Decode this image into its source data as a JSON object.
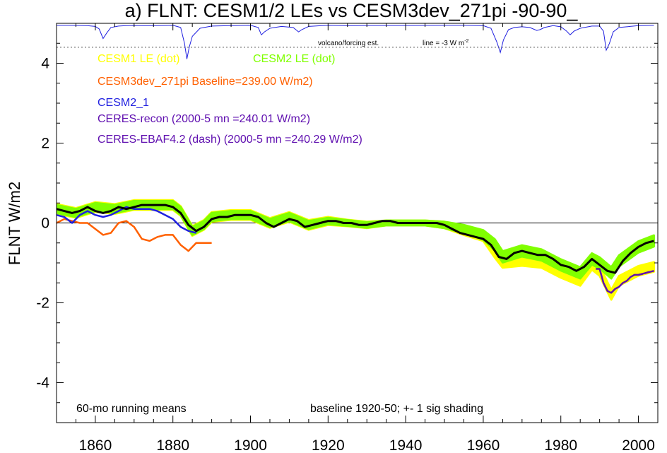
{
  "chart_data": {
    "type": "line",
    "title": "a) FLNT: CESM1/2 LEs vs CESM3dev_271pi -90-90_",
    "ylabel": "FLNT W/m2",
    "xlim": [
      1850,
      2005
    ],
    "ylim": [
      -5,
      5
    ],
    "x_ticks": [
      "1860",
      "1880",
      "1900",
      "1920",
      "1940",
      "1960",
      "1980",
      "2000"
    ],
    "y_ticks": [
      "4",
      "2",
      "0",
      "-2",
      "-4"
    ],
    "grid": false,
    "legend_entries": [
      {
        "text": "CESM1 LE (dot)",
        "color": "#ffff00"
      },
      {
        "text": "CESM2 LE (dot)",
        "color": "#80ff00"
      },
      {
        "text": "CESM3dev_271pi Baseline=239.00 W/m2)",
        "color": "#ff6000"
      },
      {
        "text": "CESM2_1",
        "color": "#2020e0"
      },
      {
        "text": "CERES-recon (2000-5 mn =240.01 W/m2)",
        "color": "#6010b0"
      },
      {
        "text": "CERES-EBAF4.2 (dash) (2000-5 mn =240.29 W/m2)",
        "color": "#6010b0"
      }
    ],
    "annotations": {
      "running_means": "60-mo running means",
      "baseline": "baseline 1920-50; +- 1 sig shading",
      "volcano": "volcano/forcing est.",
      "line_label": "line = -3 W m",
      "line_label_exp": "-2"
    },
    "series": [
      {
        "name": "CESM1 LE (dot)",
        "color": "#ffff00",
        "style": "band",
        "x": [
          1850,
          1855,
          1860,
          1865,
          1870,
          1875,
          1880,
          1882,
          1885,
          1888,
          1890,
          1895,
          1900,
          1905,
          1910,
          1915,
          1920,
          1925,
          1930,
          1935,
          1940,
          1945,
          1950,
          1955,
          1960,
          1963,
          1965,
          1970,
          1975,
          1980,
          1985,
          1988,
          1990,
          1993,
          1995,
          2000,
          2004
        ],
        "values": [
          0.35,
          0.25,
          0.4,
          0.35,
          0.45,
          0.45,
          0.45,
          0.3,
          -0.2,
          -0.05,
          0.15,
          0.2,
          0.2,
          0.0,
          0.15,
          -0.05,
          0.05,
          0.0,
          -0.05,
          0.0,
          0.0,
          0.0,
          -0.05,
          -0.2,
          -0.35,
          -0.75,
          -1.0,
          -0.95,
          -1.0,
          -1.25,
          -1.45,
          -1.05,
          -1.2,
          -1.8,
          -1.45,
          -1.2,
          -1.1
        ],
        "spread": [
          0.12,
          0.12,
          0.12,
          0.12,
          0.12,
          0.12,
          0.12,
          0.12,
          0.12,
          0.12,
          0.12,
          0.12,
          0.12,
          0.12,
          0.12,
          0.12,
          0.1,
          0.08,
          0.08,
          0.06,
          0.06,
          0.06,
          0.08,
          0.1,
          0.1,
          0.12,
          0.12,
          0.12,
          0.12,
          0.12,
          0.12,
          0.12,
          0.12,
          0.12,
          0.12,
          0.12,
          0.12
        ]
      },
      {
        "name": "CESM2 LE (dot)",
        "color": "#80ff00",
        "style": "band",
        "x": [
          1850,
          1855,
          1860,
          1865,
          1870,
          1875,
          1880,
          1882,
          1885,
          1888,
          1890,
          1895,
          1900,
          1905,
          1910,
          1915,
          1920,
          1925,
          1930,
          1935,
          1940,
          1945,
          1950,
          1955,
          1960,
          1963,
          1965,
          1970,
          1975,
          1980,
          1985,
          1988,
          1990,
          1993,
          1995,
          2000,
          2004
        ],
        "values": [
          0.35,
          0.25,
          0.4,
          0.35,
          0.45,
          0.45,
          0.45,
          0.3,
          -0.2,
          -0.05,
          0.15,
          0.2,
          0.2,
          0.0,
          0.15,
          -0.05,
          0.05,
          0.0,
          -0.05,
          0.0,
          0.0,
          0.0,
          -0.05,
          -0.15,
          -0.3,
          -0.55,
          -0.85,
          -0.7,
          -0.8,
          -1.05,
          -1.25,
          -0.9,
          -1.0,
          -1.25,
          -0.95,
          -0.6,
          -0.45
        ],
        "spread": [
          0.1,
          0.1,
          0.1,
          0.1,
          0.1,
          0.1,
          0.1,
          0.1,
          0.1,
          0.1,
          0.1,
          0.1,
          0.1,
          0.1,
          0.1,
          0.1,
          0.08,
          0.07,
          0.07,
          0.06,
          0.06,
          0.06,
          0.08,
          0.1,
          0.12,
          0.14,
          0.14,
          0.14,
          0.14,
          0.14,
          0.14,
          0.14,
          0.14,
          0.14,
          0.14,
          0.14,
          0.14
        ]
      },
      {
        "name": "CESM3dev_271pi",
        "color": "#ff6000",
        "style": "line",
        "x": [
          1850,
          1852,
          1854,
          1856,
          1858,
          1860,
          1862,
          1864,
          1866,
          1868,
          1870,
          1872,
          1874,
          1876,
          1878,
          1880,
          1882,
          1884,
          1886,
          1888,
          1890
        ],
        "values": [
          0.0,
          0.1,
          0.05,
          0.0,
          0.0,
          -0.15,
          -0.3,
          -0.25,
          0.0,
          0.05,
          -0.1,
          -0.4,
          -0.45,
          -0.35,
          -0.3,
          -0.3,
          -0.55,
          -0.7,
          -0.5,
          -0.5,
          -0.5
        ]
      },
      {
        "name": "CESM2_1",
        "color": "#2020e0",
        "style": "line",
        "x": [
          1850,
          1852,
          1854,
          1856,
          1858,
          1860,
          1862,
          1864,
          1866,
          1868,
          1870,
          1872,
          1874,
          1876,
          1878,
          1880,
          1882,
          1884,
          1886
        ],
        "values": [
          0.2,
          0.15,
          0.0,
          0.2,
          0.3,
          0.2,
          0.15,
          0.2,
          0.3,
          0.4,
          0.35,
          0.35,
          0.35,
          0.3,
          0.2,
          0.1,
          -0.1,
          -0.2,
          -0.25
        ]
      },
      {
        "name": "CERES-recon",
        "color": "#6010b0",
        "style": "line",
        "x": [
          1989,
          1990,
          1991,
          1992,
          1993,
          1994,
          1995,
          1996,
          1997,
          1998,
          1999,
          2000,
          2002,
          2004
        ],
        "values": [
          -1.15,
          -1.15,
          -1.5,
          -1.7,
          -1.75,
          -1.65,
          -1.6,
          -1.5,
          -1.45,
          -1.35,
          -1.3,
          -1.3,
          -1.25,
          -1.2
        ]
      },
      {
        "name": "CERES-EBAF4.2 (dash)",
        "color": "#6010b0",
        "style": "dash",
        "x": [
          2000,
          2001,
          2002,
          2003,
          2004
        ],
        "values": [
          -1.3,
          -1.28,
          -1.25,
          -1.22,
          -1.2
        ]
      },
      {
        "name": "",
        "color": "#000000",
        "style": "line",
        "x": [
          1850,
          1852,
          1854,
          1856,
          1858,
          1860,
          1862,
          1864,
          1866,
          1868,
          1870,
          1872,
          1874,
          1876,
          1878,
          1880,
          1882,
          1884,
          1886,
          1888,
          1890,
          1892,
          1894,
          1896,
          1898,
          1900,
          1902,
          1904,
          1906,
          1908,
          1910,
          1912,
          1914,
          1916,
          1918,
          1920,
          1922,
          1924,
          1926,
          1928,
          1930,
          1932,
          1934,
          1936,
          1938,
          1940,
          1942,
          1944,
          1946,
          1948,
          1950,
          1952,
          1954,
          1956,
          1958,
          1960,
          1962,
          1964,
          1966,
          1968,
          1970,
          1972,
          1974,
          1976,
          1978,
          1980,
          1982,
          1984,
          1986,
          1988,
          1990,
          1992,
          1994,
          1996,
          1998,
          2000,
          2002,
          2004
        ],
        "values": [
          0.35,
          0.3,
          0.25,
          0.3,
          0.4,
          0.3,
          0.25,
          0.3,
          0.4,
          0.35,
          0.4,
          0.45,
          0.45,
          0.45,
          0.45,
          0.4,
          0.25,
          -0.05,
          -0.2,
          -0.1,
          0.1,
          0.15,
          0.15,
          0.2,
          0.2,
          0.2,
          0.15,
          0.0,
          -0.1,
          0.0,
          0.1,
          0.05,
          -0.1,
          -0.05,
          0.0,
          0.05,
          0.05,
          0.0,
          0.0,
          -0.05,
          -0.05,
          0.0,
          0.05,
          0.05,
          0.0,
          0.0,
          0.0,
          0.0,
          0.0,
          0.0,
          -0.05,
          -0.15,
          -0.25,
          -0.3,
          -0.35,
          -0.4,
          -0.55,
          -0.85,
          -0.9,
          -0.75,
          -0.7,
          -0.75,
          -0.8,
          -0.8,
          -0.9,
          -1.05,
          -1.1,
          -1.2,
          -1.1,
          -0.9,
          -1.05,
          -1.2,
          -1.25,
          -0.95,
          -0.75,
          -0.6,
          -0.5,
          -0.45
        ]
      }
    ],
    "volcano_x": [
      1850,
      1853,
      1856,
      1858,
      1860,
      1861,
      1862,
      1863,
      1864,
      1866,
      1868,
      1870,
      1872,
      1875,
      1878,
      1880,
      1882,
      1883,
      1883.6,
      1884.2,
      1885,
      1887,
      1890,
      1895,
      1900,
      1902,
      1902.8,
      1903.6,
      1905,
      1908,
      1911,
      1912.4,
      1913.2,
      1915,
      1920,
      1925,
      1930,
      1940,
      1950,
      1955,
      1960,
      1962,
      1963.5,
      1964.4,
      1965.2,
      1966.5,
      1968,
      1970,
      1972,
      1973.8,
      1974.6,
      1975.8,
      1978,
      1980,
      1981.5,
      1982.4,
      1983.4,
      1985,
      1988,
      1990,
      1991,
      1991.7,
      1992.5,
      1993.5,
      1995,
      2000,
      2004
    ],
    "volcano_values": [
      0.0,
      0.0,
      -0.02,
      -0.05,
      -0.15,
      -0.5,
      -1.8,
      -1.0,
      -0.3,
      -0.1,
      -0.05,
      -0.02,
      -0.05,
      -0.05,
      -0.02,
      0.0,
      -0.3,
      -2.5,
      -4.6,
      -3.0,
      -1.5,
      -0.4,
      -0.1,
      -0.05,
      0.0,
      -0.3,
      -1.3,
      -0.9,
      -0.4,
      -0.15,
      -0.3,
      -0.9,
      -0.6,
      -0.15,
      0.0,
      -0.05,
      -0.02,
      -0.02,
      0.0,
      0.0,
      -0.05,
      -0.4,
      -2.3,
      -3.7,
      -2.0,
      -0.6,
      -0.3,
      -0.2,
      -0.3,
      -0.7,
      -0.6,
      -0.3,
      -0.05,
      -0.2,
      -0.8,
      -1.3,
      -0.8,
      -0.4,
      -0.1,
      -0.1,
      -0.8,
      -3.4,
      -2.5,
      -0.9,
      -0.3,
      -0.05,
      0.0
    ]
  }
}
